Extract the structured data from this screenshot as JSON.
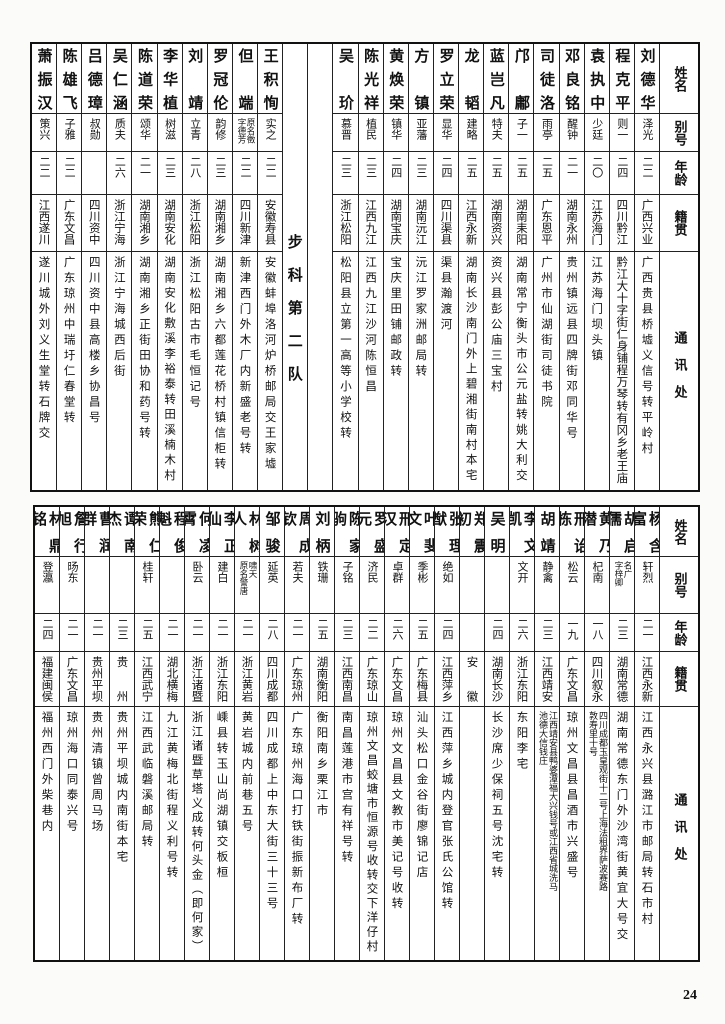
{
  "headers": {
    "name": "姓名",
    "alias": "别号",
    "age": "年龄",
    "origin": "籍贯",
    "address": "通讯处"
  },
  "top": {
    "section_label": "步科第二队",
    "rows": [
      {
        "name": "刘德华",
        "alias": "泽光",
        "age": "二二",
        "origin": "广西兴业",
        "address": "广西贵县桥墟义信号转平岭村"
      },
      {
        "name": "程克平",
        "alias": "则一",
        "age": "二四",
        "origin": "四川黔江",
        "address": "黔江大十字街仁身铺程万琴转有冈乡老王庙"
      },
      {
        "name": "袁执中",
        "alias": "少廷",
        "age": "二〇",
        "origin": "江苏海门",
        "address": "江苏海门坝头镇"
      },
      {
        "name": "邓良铭",
        "alias": "醒钟",
        "age": "二一",
        "origin": "湖南永州",
        "address": "贵州镇远县四牌街邓同华号"
      },
      {
        "name": "司徒洛",
        "alias": "雨亭",
        "age": "二五",
        "origin": "广东恩平",
        "address": "广州市仙湖街司徒书院"
      },
      {
        "name": "邝鄘",
        "alias": "子一",
        "age": "二五",
        "origin": "湖南耒阳",
        "address": "湖南常宁衡头市公元盐转姚大利交"
      },
      {
        "name": "蓝岂凡",
        "alias": "特夫",
        "age": "二五",
        "origin": "湖南资兴",
        "address": "资兴县彭公庙三宝村"
      },
      {
        "name": "龙韬",
        "alias": "建略",
        "age": "二五",
        "origin": "江西永新",
        "address": "湖南长沙南门外上碧湘街南村本宅"
      },
      {
        "name": "罗立荣",
        "alias": "显华",
        "age": "二四",
        "origin": "四川渠县",
        "address": "渠县瀚渡河"
      },
      {
        "name": "方镇",
        "alias": "亚藩",
        "age": "二三",
        "origin": "湖南沅江",
        "address": "沅江罗家洲邮局转"
      },
      {
        "name": "黄焕荣",
        "alias": "镇华",
        "age": "二四",
        "origin": "湖南宝庆",
        "address": "宝庆里田铺邮政转"
      },
      {
        "name": "陈光祥",
        "alias": "植民",
        "age": "二三",
        "origin": "江西九江",
        "address": "江西九江沙河陈恒昌"
      },
      {
        "name": "吴玠",
        "alias": "慕晋",
        "age": "二三",
        "origin": "浙江松阳",
        "address": "松阳县立第一高等小学校转"
      },
      {
        "name": "王积恂",
        "alias": "实之",
        "age": "二二",
        "origin": "安徽寿县",
        "address": "安徽蚌埠洛河炉桥邮局交王家墟"
      },
      {
        "name": "但端",
        "alias": "原名徵\n字德芳",
        "age": "二二",
        "origin": "四川新津",
        "address": "新津西门外木厂内新盛老号转"
      },
      {
        "name": "罗冠伦",
        "alias": "韵修",
        "age": "二三",
        "origin": "湖南湘乡",
        "address": "湖南湘乡六都莲花桥村镇信柜转"
      },
      {
        "name": "刘靖",
        "alias": "立青",
        "age": "二八",
        "origin": "浙江松阳",
        "address": "浙江松阳古市毛恒记号"
      },
      {
        "name": "李华植",
        "alias": "树滋",
        "age": "二三",
        "origin": "湖南安化",
        "address": "湖南安化敷溪李裕泰转田溪楠木村"
      },
      {
        "name": "陈道荣",
        "alias": "颂华",
        "age": "二一",
        "origin": "湖南湘乡",
        "address": "湖南湘乡正街田协和药号转"
      },
      {
        "name": "吴仁涵",
        "alias": "质夫",
        "age": "二六",
        "origin": "浙江宁海",
        "address": "浙江宁海城西后街"
      },
      {
        "name": "吕德璋",
        "alias": "叔勋",
        "age": "",
        "origin": "四川资中",
        "address": "四川资中县高楼乡协昌号"
      },
      {
        "name": "陈雄飞",
        "alias": "子雅",
        "age": "二二",
        "origin": "广东文昌",
        "address": "广东琼州中瑞圩仁春堂转"
      },
      {
        "name": "萧振汉",
        "alias": "策兴",
        "age": "二二",
        "origin": "江西遂川",
        "address": "遂川城外刘义生堂转石牌交"
      }
    ]
  },
  "bottom": {
    "rows": [
      {
        "name": "杨含富",
        "alias": "轩烈",
        "age": "二一",
        "origin": "江西永新",
        "address": "江西永兴县潞江市邮局转石市村"
      },
      {
        "name": "胡启儒",
        "alias": "名广\n字梓卿",
        "age": "二三",
        "origin": "湖南常德",
        "address": "湖南常德东门外沙湾街黄宜大号交"
      },
      {
        "name": "黄乃潜",
        "alias": "杞南",
        "age": "一八",
        "origin": "四川叙永",
        "address": "四川成都玉皇观街十二号上海法租界萨波赛路\n敦寿里十号"
      },
      {
        "name": "邢诒栋",
        "alias": "松云",
        "age": "一九",
        "origin": "广东文昌",
        "address": "琼州文昌县昌酒市兴盛号"
      },
      {
        "name": "胡靖",
        "alias": "静禽",
        "age": "二三",
        "origin": "江西靖安",
        "address": "江西靖安县鸭婆潭福大兴钱号或江西省城洗马\n池德大信钱庄"
      },
      {
        "name": "李文凯",
        "alias": "文开",
        "age": "二六",
        "origin": "浙江东阳",
        "address": "东阳李宅"
      },
      {
        "name": "吴明",
        "alias": "",
        "age": "二四",
        "origin": "湖南长沙",
        "address": "长沙席少保祠五号沈宅转"
      },
      {
        "name": "郑震初",
        "alias": "",
        "age": "",
        "origin": "安　　徽",
        "address": ""
      },
      {
        "name": "张理猷",
        "alias": "绝如",
        "age": "二四",
        "origin": "江西萍乡",
        "address": "江西萍乡城内登官张氏公馆转"
      },
      {
        "name": "叶斐文",
        "alias": "季彬",
        "age": "二五",
        "origin": "广东梅县",
        "address": "汕头松口金谷街廖锦记店"
      },
      {
        "name": "邢定汉",
        "alias": "卓群",
        "age": "二六",
        "origin": "广东文昌",
        "address": "琼州文昌县文教市美记号收转"
      },
      {
        "name": "罗盛元",
        "alias": "济民",
        "age": "二二",
        "origin": "广东琼山",
        "address": "琼州文昌蛟塘市恒源号收转交下洋仔村"
      },
      {
        "name": "陈家驹",
        "alias": "子铭",
        "age": "二三",
        "origin": "江西南昌",
        "address": "南昌莲港市宫有祥号转"
      },
      {
        "name": "刘柄",
        "alias": "铁珊",
        "age": "二五",
        "origin": "湖南衡阳",
        "address": "衡阳南乡栗江市"
      },
      {
        "name": "周成钦",
        "alias": "若夫",
        "age": "二一",
        "origin": "广东琼州",
        "address": "广东琼州海口打铁街振新布厂转"
      },
      {
        "name": "邹骏",
        "alias": "延英",
        "age": "二八",
        "origin": "四川成都",
        "address": "四川成都上中东大街三十三号"
      },
      {
        "name": "林树人",
        "alias": "啸天\n原名警唐",
        "age": "二一",
        "origin": "浙江黄岩",
        "address": "黄岩城内前巷五号"
      },
      {
        "name": "李正仙",
        "alias": "建白",
        "age": "二一",
        "origin": "浙江东阳",
        "address": "嵊县转玉山尚湖镇交板桓"
      },
      {
        "name": "何凌霄",
        "alias": "卧云",
        "age": "二一",
        "origin": "浙江诸暨",
        "address": "浙江诸暨草塔义成转何头金（即何家）"
      },
      {
        "name": "程俊魁",
        "alias": "",
        "age": "二一",
        "origin": "湖北横梅",
        "address": "九江黄梅北街程义利号转"
      },
      {
        "name": "熊仁荣",
        "alias": "桂轩",
        "age": "二五",
        "origin": "江西武宁",
        "address": "江西武临磐溪邮局转"
      },
      {
        "name": "谭南杰",
        "alias": "",
        "age": "二三",
        "origin": "贵　　州",
        "address": "贵州平坝城内南街本宅"
      },
      {
        "name": "曹润群",
        "alias": "",
        "age": "二一",
        "origin": "贵州平坝",
        "address": "贵州清镇曾周马场"
      },
      {
        "name": "詹行旭",
        "alias": "旸东",
        "age": "二一",
        "origin": "广东文昌",
        "address": "琼州海口同泰兴号"
      },
      {
        "name": "林鼎铭",
        "alias": "登瀛",
        "age": "二四",
        "origin": "福建闽侯",
        "address": "福州西门外柴巷内"
      }
    ]
  },
  "page_number": "24"
}
